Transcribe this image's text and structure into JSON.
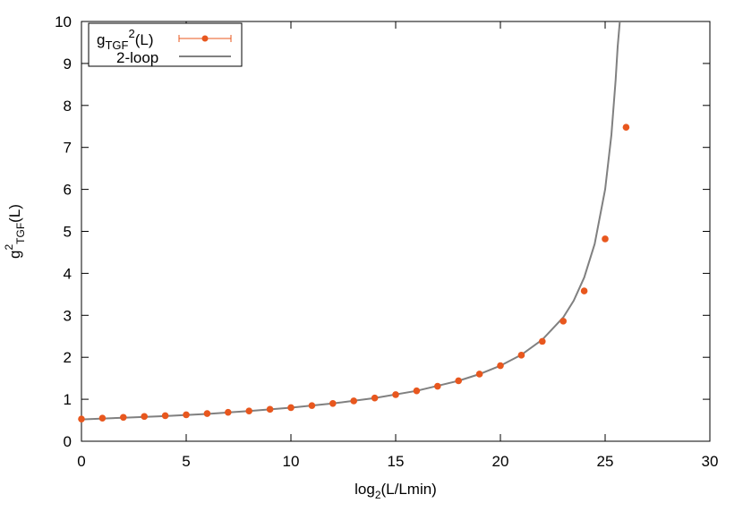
{
  "chart_data": {
    "type": "scatter",
    "xlabel": {
      "base": "log",
      "sub": "2",
      "rest": "(L/Lmin)"
    },
    "ylabel": {
      "base": "g",
      "sup": "2",
      "sub": "TGF",
      "rest": "(L)"
    },
    "xlim": [
      0,
      30
    ],
    "ylim": [
      0,
      10
    ],
    "xticks": [
      0,
      5,
      10,
      15,
      20,
      25,
      30
    ],
    "yticks": [
      0,
      1,
      2,
      3,
      4,
      5,
      6,
      7,
      8,
      9,
      10
    ],
    "grid": false,
    "legend_position": "top-left",
    "series": [
      {
        "name": {
          "base": "g",
          "sub": "TGF",
          "sup": "2",
          "rest": "(L)"
        },
        "kind": "points-with-errorbars",
        "color": "#e8571e",
        "x": [
          0,
          1,
          2,
          3,
          4,
          5,
          6,
          7,
          8,
          9,
          10,
          11,
          12,
          13,
          14,
          15,
          16,
          17,
          18,
          19,
          20,
          21,
          22,
          23,
          24,
          25,
          26
        ],
        "y": [
          0.53,
          0.55,
          0.57,
          0.59,
          0.61,
          0.63,
          0.66,
          0.69,
          0.72,
          0.76,
          0.8,
          0.85,
          0.9,
          0.96,
          1.03,
          1.11,
          1.2,
          1.31,
          1.44,
          1.6,
          1.8,
          2.05,
          2.38,
          2.86,
          3.58,
          4.82,
          7.48
        ]
      },
      {
        "name": "2-loop",
        "kind": "line",
        "color": "#808080",
        "x": [
          0,
          2,
          4,
          6,
          8,
          10,
          12,
          14,
          16,
          18,
          19,
          20,
          21,
          22,
          23,
          23.5,
          24,
          24.5,
          25,
          25.3,
          25.5,
          25.6,
          25.7
        ],
        "y": [
          0.52,
          0.56,
          0.6,
          0.65,
          0.72,
          0.8,
          0.9,
          1.03,
          1.2,
          1.44,
          1.6,
          1.8,
          2.06,
          2.42,
          2.95,
          3.35,
          3.9,
          4.7,
          6.0,
          7.3,
          8.6,
          9.4,
          10.0
        ]
      }
    ]
  }
}
